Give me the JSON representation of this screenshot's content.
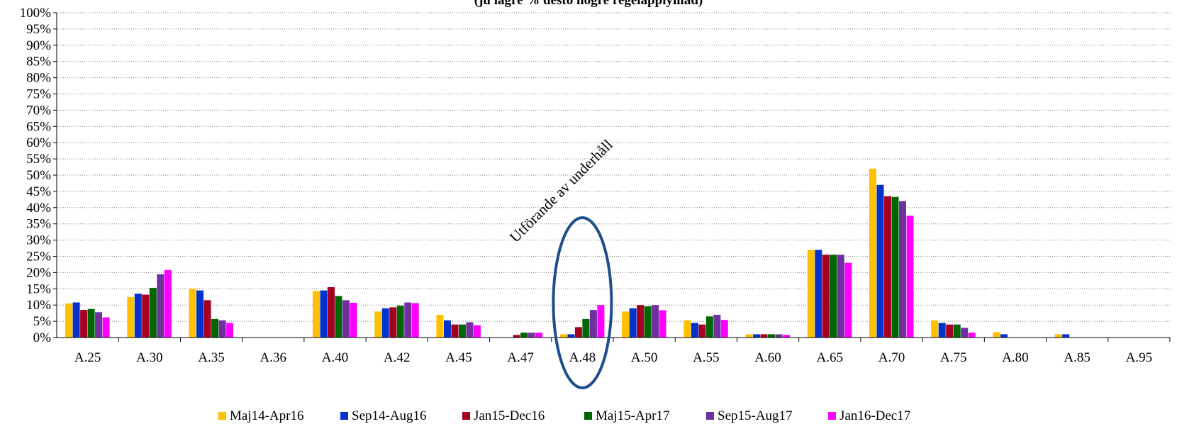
{
  "chart_data": {
    "type": "bar",
    "title": "(ju lägre % desto högre regelapplyillad)",
    "xlabel": "",
    "ylabel": "",
    "ylim": [
      0,
      100
    ],
    "y_ticks": [
      "0%",
      "5%",
      "10%",
      "15%",
      "20%",
      "25%",
      "30%",
      "35%",
      "40%",
      "45%",
      "50%",
      "55%",
      "60%",
      "65%",
      "70%",
      "75%",
      "80%",
      "85%",
      "90%",
      "95%",
      "100%"
    ],
    "grid": true,
    "legend_position": "bottom",
    "categories": [
      "A.25",
      "A.30",
      "A.35",
      "A.36",
      "A.40",
      "A.42",
      "A.45",
      "A.47",
      "A.48",
      "A.50",
      "A.55",
      "A.60",
      "A.65",
      "A.70",
      "A.75",
      "A.80",
      "A.85",
      "A.95"
    ],
    "series": [
      {
        "name": "Maj14-Apr16",
        "color": "#FFC000",
        "values": [
          10.5,
          12.5,
          15,
          0,
          14.3,
          8,
          7,
          0,
          1,
          8,
          5.3,
          1,
          27,
          52,
          5.3,
          1.7,
          1,
          0
        ]
      },
      {
        "name": "Sep14-Aug16",
        "color": "#0033CC",
        "values": [
          10.8,
          13.5,
          14.5,
          0,
          14.5,
          9,
          5.3,
          0,
          1,
          9,
          4.5,
          1,
          27,
          47,
          4.5,
          1,
          1,
          0
        ]
      },
      {
        "name": "Jan15-Dec16",
        "color": "#A50021",
        "values": [
          8.5,
          13.2,
          11.5,
          0,
          15.5,
          9.3,
          4,
          0.8,
          3.2,
          10,
          4,
          1,
          25.5,
          43.5,
          4,
          0,
          0,
          0
        ]
      },
      {
        "name": "Maj15-Apr17",
        "color": "#006600",
        "values": [
          8.8,
          15.3,
          5.7,
          0,
          12.8,
          9.8,
          4,
          1.5,
          5.7,
          9.6,
          6.5,
          1,
          25.5,
          43.3,
          4,
          0,
          0,
          0
        ]
      },
      {
        "name": "Sep15-Aug17",
        "color": "#7030A0",
        "values": [
          7.8,
          19.5,
          5.3,
          0,
          11.5,
          10.8,
          4.7,
          1.5,
          8.5,
          10,
          7,
          1,
          25.5,
          42,
          3,
          0,
          0,
          0
        ]
      },
      {
        "name": "Jan16-Dec17",
        "color": "#FF00FF",
        "values": [
          6.2,
          20.8,
          4.5,
          0,
          10.7,
          10.6,
          3.8,
          1.5,
          10,
          8.4,
          5.4,
          0.8,
          23,
          37.5,
          1.5,
          0,
          0,
          0
        ]
      }
    ],
    "annotation": {
      "text": "Utförande av underhåll",
      "target_category": "A.48",
      "ellipse_color": "#1F4E8C"
    }
  }
}
